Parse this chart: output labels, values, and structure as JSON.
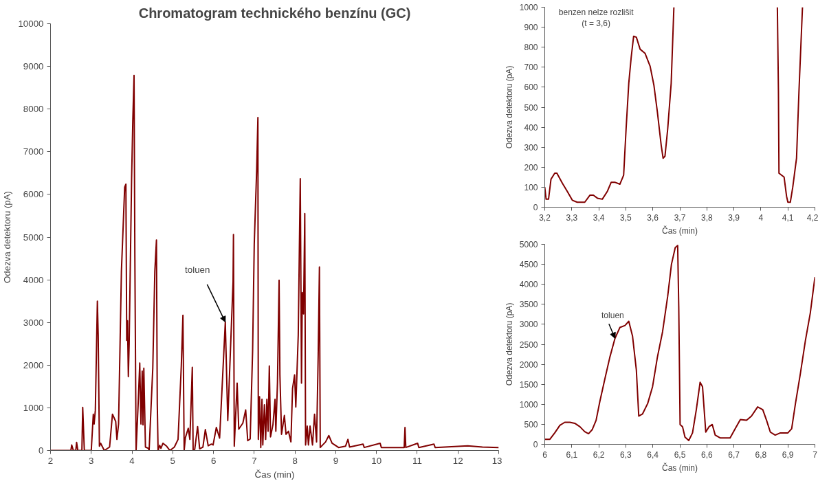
{
  "chart_data": [
    {
      "type": "line",
      "title": "Chromatogram technického benzínu (GC)",
      "xlabel": "Čas (min)",
      "ylabel": "Odezva detektoru (pA)",
      "xlim": [
        2,
        13
      ],
      "ylim": [
        0,
        10000
      ],
      "xticks": [
        2,
        3,
        4,
        5,
        6,
        7,
        8,
        9,
        10,
        11,
        12,
        13
      ],
      "yticks": [
        0,
        1000,
        2000,
        3000,
        4000,
        5000,
        6000,
        7000,
        8000,
        9000,
        10000
      ],
      "x": [
        2,
        2.5,
        2.52,
        2.56,
        2.62,
        2.64,
        2.67,
        2.77,
        2.79,
        2.83,
        3.0,
        3.05,
        3.07,
        3.1,
        3.15,
        3.17,
        3.2,
        3.23,
        3.32,
        3.45,
        3.52,
        3.6,
        3.63,
        3.67,
        3.74,
        3.82,
        3.85,
        3.87,
        3.89,
        3.91,
        3.93,
        3.99,
        4.02,
        4.05,
        4.07,
        4.1,
        4.15,
        4.19,
        4.22,
        4.25,
        4.27,
        4.29,
        4.33,
        4.4,
        4.42,
        4.51,
        4.56,
        4.6,
        4.62,
        4.64,
        4.68,
        4.71,
        4.76,
        4.85,
        4.93,
        5.04,
        5.13,
        5.21,
        5.25,
        5.28,
        5.31,
        5.38,
        5.42,
        5.48,
        5.5,
        5.54,
        5.61,
        5.66,
        5.74,
        5.8,
        5.87,
        5.95,
        5.99,
        6.07,
        6.15,
        6.29,
        6.35,
        6.48,
        6.49,
        6.51,
        6.58,
        6.62,
        6.72,
        6.79,
        6.84,
        6.9,
        6.96,
        7.0,
        7.06,
        7.09,
        7.1,
        7.13,
        7.16,
        7.19,
        7.21,
        7.25,
        7.28,
        7.31,
        7.34,
        7.37,
        7.4,
        7.46,
        7.51,
        7.53,
        7.57,
        7.61,
        7.63,
        7.67,
        7.74,
        7.78,
        7.84,
        7.9,
        7.94,
        7.99,
        8.02,
        8.08,
        8.13,
        8.16,
        8.18,
        8.21,
        8.24,
        8.26,
        8.3,
        8.33,
        8.37,
        8.43,
        8.48,
        8.53,
        8.57,
        8.6,
        8.62,
        8.75,
        8.83,
        8.91,
        9.07,
        9.24,
        9.3,
        9.34,
        9.67,
        9.7,
        10.09,
        10.12,
        10.68,
        10.7,
        10.72,
        11.01,
        11.04,
        11.41,
        11.44,
        12.24,
        12.6,
        13
      ],
      "series": [
        {
          "color": "#800000",
          "values": [
            0,
            0,
            130,
            0,
            0,
            190,
            0,
            0,
            1010,
            0,
            0,
            850,
            620,
            940,
            3500,
            2700,
            100,
            170,
            0,
            80,
            850,
            680,
            260,
            620,
            4200,
            6170,
            6240,
            2580,
            3040,
            1730,
            2500,
            6370,
            7750,
            8790,
            4540,
            0,
            1070,
            2050,
            620,
            1860,
            600,
            1930,
            80,
            50,
            0,
            1930,
            4200,
            4930,
            1100,
            0,
            120,
            50,
            170,
            100,
            0,
            80,
            260,
            1990,
            3170,
            0,
            300,
            520,
            260,
            1950,
            0,
            30,
            560,
            40,
            80,
            490,
            110,
            150,
            130,
            540,
            290,
            3010,
            700,
            3950,
            5060,
            100,
            1580,
            500,
            640,
            950,
            230,
            270,
            2330,
            4830,
            6590,
            7800,
            260,
            1260,
            70,
            1200,
            130,
            1070,
            260,
            1200,
            450,
            1980,
            320,
            610,
            1200,
            450,
            1580,
            3990,
            1770,
            380,
            820,
            380,
            450,
            200,
            1450,
            1770,
            1020,
            2700,
            6370,
            1580,
            3700,
            3200,
            5550,
            130,
            570,
            130,
            570,
            130,
            850,
            200,
            2260,
            4300,
            70,
            200,
            350,
            170,
            70,
            100,
            260,
            80,
            150,
            70,
            170,
            70,
            70,
            540,
            70,
            170,
            70,
            150,
            70,
            110,
            80,
            70
          ]
        }
      ],
      "annotations": [
        {
          "text": "toluen",
          "x": 6.29,
          "y": 3010
        }
      ]
    },
    {
      "type": "line",
      "xlabel": "Čas (min)",
      "ylabel": "Odezva detektoru (pA)",
      "xlim": [
        3.2,
        4.2
      ],
      "ylim": [
        0,
        1000
      ],
      "xticks": [
        {
          "value": 3.2,
          "label": "3,2"
        },
        {
          "value": 3.3,
          "label": "3,3"
        },
        {
          "value": 3.4,
          "label": "3,4"
        },
        {
          "value": 3.5,
          "label": "3,5"
        },
        {
          "value": 3.6,
          "label": "3,6"
        },
        {
          "value": 3.7,
          "label": "3,7"
        },
        {
          "value": 3.8,
          "label": "3,8"
        },
        {
          "value": 3.9,
          "label": "3,9"
        },
        4,
        {
          "value": 4.1,
          "label": "4,1"
        },
        {
          "value": 4.2,
          "label": "4,2"
        }
      ],
      "yticks": [
        0,
        100,
        200,
        300,
        400,
        500,
        600,
        700,
        800,
        900,
        1000
      ],
      "x": [
        3.2,
        3.205,
        3.214,
        3.223,
        3.237,
        3.245,
        3.265,
        3.283,
        3.302,
        3.32,
        3.348,
        3.367,
        3.38,
        3.395,
        3.413,
        3.432,
        3.446,
        3.459,
        3.478,
        3.492,
        3.501,
        3.511,
        3.52,
        3.529,
        3.539,
        3.553,
        3.571,
        3.59,
        3.604,
        3.617,
        3.631,
        3.638,
        3.645,
        3.655,
        3.668,
        3.678,
        3.87,
        4.061,
        4.065,
        4.067,
        4.077,
        4.086,
        4.095,
        4.1,
        4.109,
        4.118,
        4.132,
        4.141,
        4.154
      ],
      "series": [
        {
          "color": "#800000",
          "values": [
            100,
            40,
            40,
            140,
            170,
            170,
            120,
            80,
            35,
            25,
            25,
            60,
            60,
            45,
            40,
            80,
            125,
            125,
            115,
            160,
            390,
            620,
            750,
            855,
            850,
            790,
            770,
            705,
            610,
            475,
            310,
            245,
            255,
            390,
            620,
            1000,
            null,
            1000,
            580,
            170,
            160,
            150,
            55,
            25,
            25,
            100,
            245,
            580,
            1000
          ]
        }
      ],
      "annotations": [
        "benzen nelze rozlišit\n(t = 3,6)"
      ]
    },
    {
      "type": "line",
      "xlabel": "Čas (min)",
      "ylabel": "Odezva detektoru (pA)",
      "xlim": [
        6,
        7
      ],
      "ylim": [
        0,
        5000
      ],
      "xticks": [
        6,
        {
          "value": 6.1,
          "label": "6,1"
        },
        {
          "value": 6.2,
          "label": "6,2"
        },
        {
          "value": 6.3,
          "label": "6,3"
        },
        {
          "value": 6.4,
          "label": "6,4"
        },
        {
          "value": 6.5,
          "label": "6,5"
        },
        {
          "value": 6.6,
          "label": "6,6"
        },
        {
          "value": 6.7,
          "label": "6,7"
        },
        {
          "value": 6.8,
          "label": "6,8"
        },
        {
          "value": 6.9,
          "label": "6,9"
        },
        7
      ],
      "yticks": [
        0,
        500,
        1000,
        1500,
        2000,
        2500,
        3000,
        3500,
        4000,
        4500,
        5000
      ],
      "x": [
        6.0,
        6.019,
        6.037,
        6.056,
        6.074,
        6.093,
        6.111,
        6.13,
        6.148,
        6.162,
        6.176,
        6.19,
        6.204,
        6.223,
        6.241,
        6.26,
        6.278,
        6.297,
        6.311,
        6.325,
        6.339,
        6.348,
        6.362,
        6.381,
        6.399,
        6.417,
        6.436,
        6.455,
        6.469,
        6.483,
        6.492,
        6.496,
        6.501,
        6.51,
        6.519,
        6.533,
        6.547,
        6.561,
        6.575,
        6.584,
        6.596,
        6.608,
        6.62,
        6.631,
        6.649,
        6.686,
        6.705,
        6.724,
        6.747,
        6.765,
        6.788,
        6.807,
        6.821,
        6.835,
        6.853,
        6.872,
        6.9,
        6.914,
        6.928,
        6.946,
        6.965,
        6.983,
        7.0
      ],
      "series": [
        {
          "color": "#800000",
          "values": [
            125,
            125,
            285,
            475,
            550,
            550,
            525,
            440,
            315,
            265,
            370,
            600,
            1075,
            1650,
            2180,
            2650,
            2920,
            2970,
            3075,
            2700,
            1860,
            705,
            760,
            1020,
            1440,
            2180,
            2810,
            3700,
            4500,
            4920,
            4970,
            3440,
            495,
            440,
            180,
            95,
            285,
            865,
            1550,
            1440,
            305,
            440,
            495,
            230,
            160,
            160,
            390,
            620,
            600,
            705,
            935,
            865,
            600,
            305,
            230,
            285,
            285,
            390,
            1020,
            1760,
            2600,
            3285,
            4180
          ]
        }
      ],
      "annotations": [
        {
          "text": "toluen",
          "x": 6.26,
          "y": 2650
        }
      ]
    }
  ]
}
